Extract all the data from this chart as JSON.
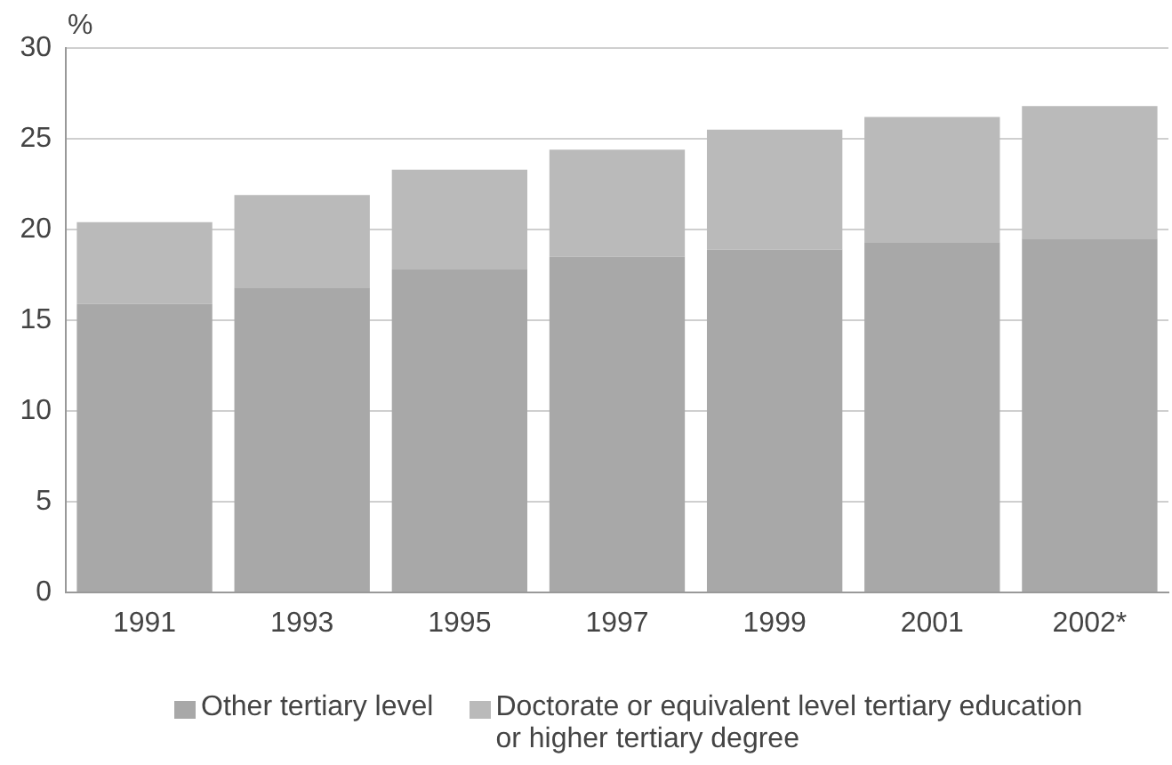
{
  "chart_data": {
    "type": "bar",
    "stacked": true,
    "ylabel": "%",
    "categories": [
      "1991",
      "1993",
      "1995",
      "1997",
      "1999",
      "2001",
      "2002*"
    ],
    "series": [
      {
        "name": "Other tertiary level",
        "color": "#a8a8a8",
        "values": [
          15.9,
          16.8,
          17.8,
          18.5,
          18.9,
          19.3,
          19.5
        ]
      },
      {
        "name": "Doctorate or equivalent level tertiary education or higher tertiary degree",
        "color": "#bababa",
        "values": [
          4.5,
          5.1,
          5.5,
          5.9,
          6.6,
          6.9,
          7.3
        ]
      }
    ],
    "ylim": [
      0,
      30
    ],
    "yticks": [
      0,
      5,
      10,
      15,
      20,
      25,
      30
    ],
    "grid": "y",
    "legend": "bottom"
  }
}
